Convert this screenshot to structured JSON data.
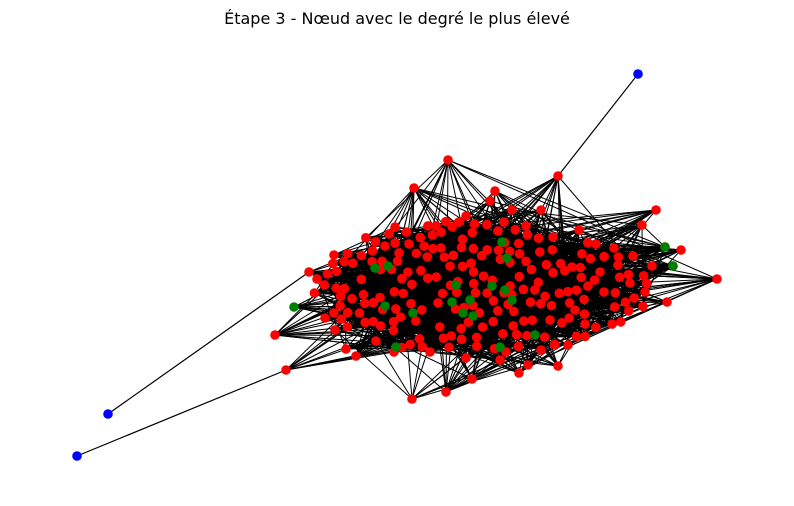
{
  "title": "Étape 3 - Nœud avec le degré le plus élevé",
  "graph": {
    "node_colors": {
      "red": "#ff0000",
      "green": "#008000",
      "blue": "#0000ff"
    },
    "edge_color": "#000000",
    "legend": "none",
    "axes": "hidden"
  }
}
